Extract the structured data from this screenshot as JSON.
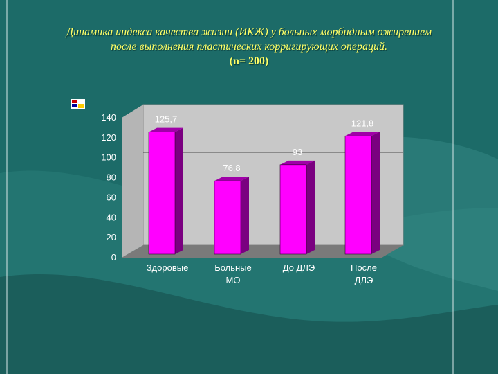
{
  "slide": {
    "title_line1": "Динамика индекса качества жизни (ИКЖ) у больных морбидным ожирением",
    "title_line2": "после выполнения пластических корригирующих операций.",
    "title_line3": "(n= 200)",
    "accent": "#ffff66",
    "background": "#1c6b68"
  },
  "chart_data": {
    "type": "bar",
    "categories": [
      [
        "Здоровые"
      ],
      [
        "Больные",
        "МО"
      ],
      [
        "До ДЛЭ"
      ],
      [
        "После",
        "ДЛЭ"
      ]
    ],
    "values": [
      125.7,
      76.8,
      93,
      121.8
    ],
    "value_labels": [
      "125,7",
      "76,8",
      "93",
      "121,8"
    ],
    "yticks": [
      0,
      20,
      40,
      60,
      80,
      100,
      120,
      140
    ],
    "ylim": [
      0,
      140
    ],
    "reference_line": 93,
    "bar_color": "#ff00ff",
    "grid": false
  }
}
